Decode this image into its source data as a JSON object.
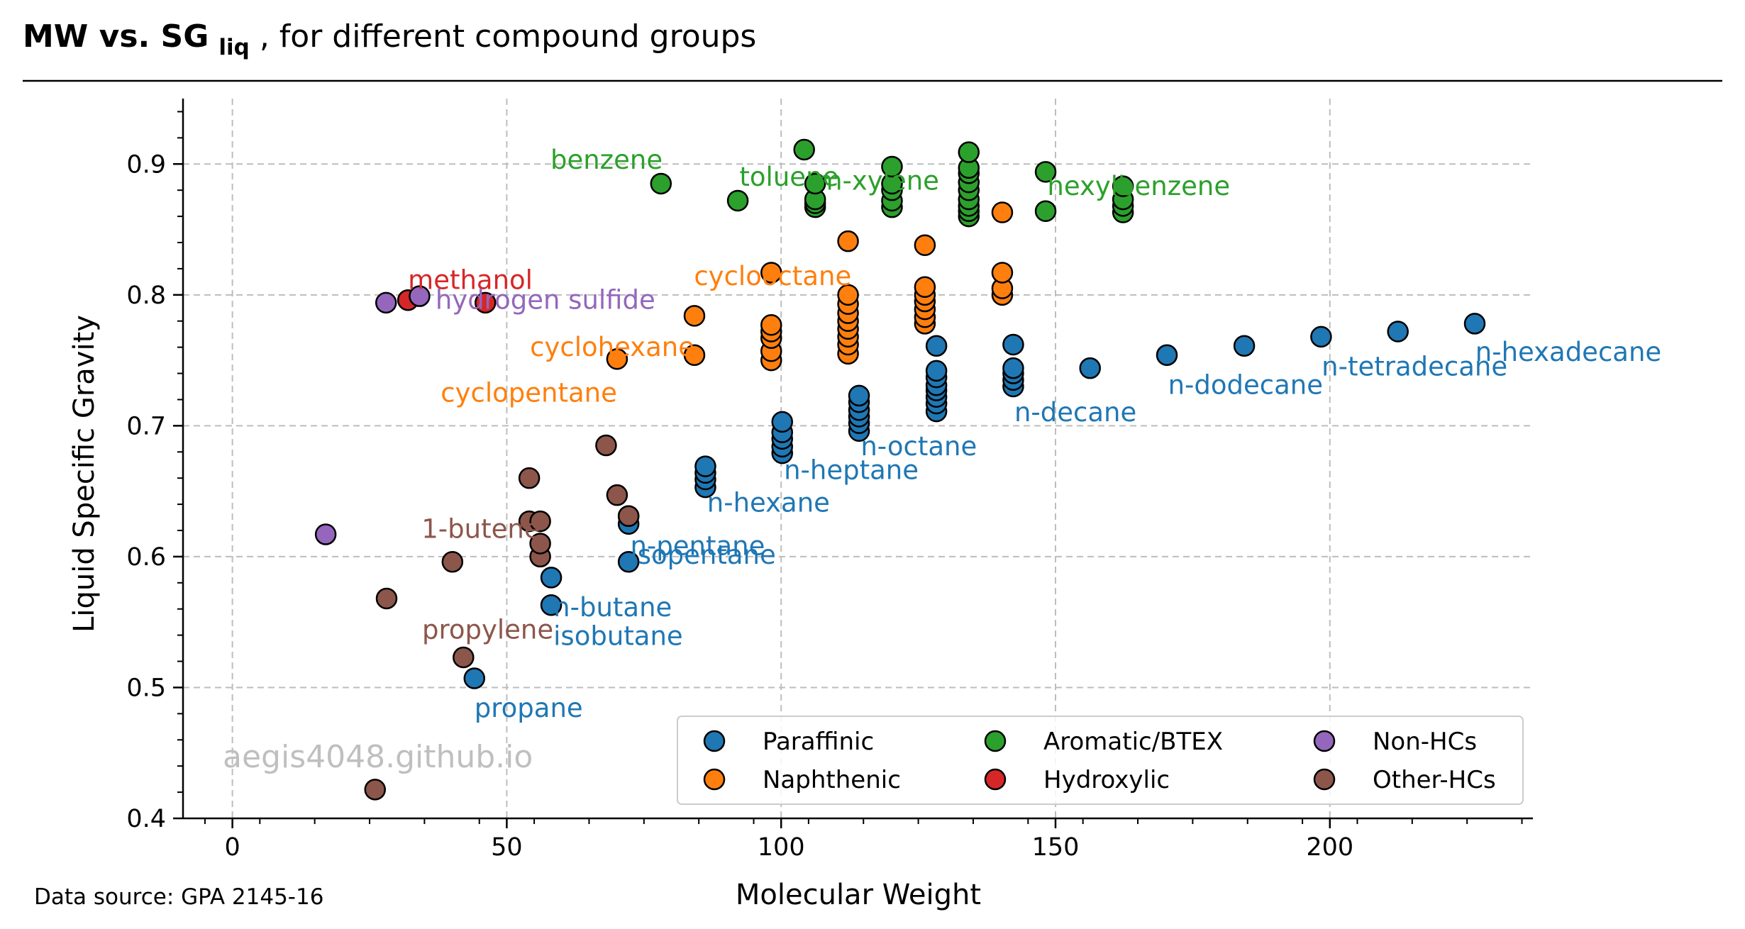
{
  "header": {
    "title_bold_main": "MW vs. ",
    "title_bold_sg": "SG",
    "title_sub": "liq",
    "title_rest": ", for different compound groups"
  },
  "footer": {
    "source": "Data source: GPA 2145-16",
    "watermark": "aegis4048.github.io"
  },
  "chart_data": {
    "type": "scatter",
    "xlabel": "Molecular Weight",
    "ylabel": "Liquid Specific Gravity",
    "xlim": [
      -9,
      237
    ],
    "ylim": [
      0.4,
      0.95
    ],
    "xticks": [
      0,
      50,
      100,
      150,
      200
    ],
    "yticks": [
      0.4,
      0.5,
      0.6,
      0.7,
      0.8,
      0.9
    ],
    "grid": true,
    "legend_position": "lower-right",
    "legend_columns": 3,
    "series": [
      {
        "name": "Paraffinic",
        "color": "#1f77b4",
        "points": [
          [
            44.1,
            0.507
          ],
          [
            58.1,
            0.563
          ],
          [
            58.1,
            0.584
          ],
          [
            72.2,
            0.596
          ],
          [
            72.2,
            0.625
          ],
          [
            72.2,
            0.631
          ],
          [
            86.2,
            0.653
          ],
          [
            86.2,
            0.659
          ],
          [
            86.2,
            0.664
          ],
          [
            86.2,
            0.669
          ],
          [
            100.2,
            0.679
          ],
          [
            100.2,
            0.684
          ],
          [
            100.2,
            0.69
          ],
          [
            100.2,
            0.695
          ],
          [
            100.2,
            0.703
          ],
          [
            114.2,
            0.696
          ],
          [
            114.2,
            0.702
          ],
          [
            114.2,
            0.707
          ],
          [
            114.2,
            0.712
          ],
          [
            114.2,
            0.718
          ],
          [
            114.2,
            0.723
          ],
          [
            128.3,
            0.711
          ],
          [
            128.3,
            0.717
          ],
          [
            128.3,
            0.722
          ],
          [
            128.3,
            0.727
          ],
          [
            128.3,
            0.731
          ],
          [
            128.3,
            0.737
          ],
          [
            128.3,
            0.742
          ],
          [
            128.3,
            0.761
          ],
          [
            142.3,
            0.73
          ],
          [
            142.3,
            0.735
          ],
          [
            142.3,
            0.74
          ],
          [
            142.3,
            0.744
          ],
          [
            142.3,
            0.762
          ],
          [
            156.3,
            0.744
          ],
          [
            170.3,
            0.754
          ],
          [
            184.4,
            0.761
          ],
          [
            198.4,
            0.768
          ],
          [
            212.4,
            0.772
          ],
          [
            226.4,
            0.778
          ]
        ]
      },
      {
        "name": "Naphthenic",
        "color": "#ff7f0e",
        "points": [
          [
            70.1,
            0.751
          ],
          [
            84.2,
            0.754
          ],
          [
            84.2,
            0.784
          ],
          [
            98.2,
            0.75
          ],
          [
            98.2,
            0.757
          ],
          [
            98.2,
            0.767
          ],
          [
            98.2,
            0.772
          ],
          [
            98.2,
            0.777
          ],
          [
            98.2,
            0.817
          ],
          [
            112.2,
            0.755
          ],
          [
            112.2,
            0.762
          ],
          [
            112.2,
            0.768
          ],
          [
            112.2,
            0.774
          ],
          [
            112.2,
            0.78
          ],
          [
            112.2,
            0.786
          ],
          [
            112.2,
            0.793
          ],
          [
            112.2,
            0.8
          ],
          [
            112.2,
            0.841
          ],
          [
            126.2,
            0.778
          ],
          [
            126.2,
            0.783
          ],
          [
            126.2,
            0.789
          ],
          [
            126.2,
            0.795
          ],
          [
            126.2,
            0.8
          ],
          [
            126.2,
            0.806
          ],
          [
            126.2,
            0.838
          ],
          [
            140.3,
            0.8
          ],
          [
            140.3,
            0.805
          ],
          [
            140.3,
            0.817
          ],
          [
            140.3,
            0.863
          ]
        ]
      },
      {
        "name": "Aromatic/BTEX",
        "color": "#2ca02c",
        "points": [
          [
            78.1,
            0.885
          ],
          [
            92.1,
            0.872
          ],
          [
            104.2,
            0.911
          ],
          [
            106.2,
            0.867
          ],
          [
            106.2,
            0.87
          ],
          [
            106.2,
            0.873
          ],
          [
            106.2,
            0.885
          ],
          [
            120.2,
            0.867
          ],
          [
            120.2,
            0.872
          ],
          [
            120.2,
            0.88
          ],
          [
            120.2,
            0.885
          ],
          [
            120.2,
            0.898
          ],
          [
            134.2,
            0.86
          ],
          [
            134.2,
            0.864
          ],
          [
            134.2,
            0.868
          ],
          [
            134.2,
            0.873
          ],
          [
            134.2,
            0.88
          ],
          [
            134.2,
            0.886
          ],
          [
            134.2,
            0.893
          ],
          [
            134.2,
            0.897
          ],
          [
            134.2,
            0.909
          ],
          [
            148.2,
            0.864
          ],
          [
            148.2,
            0.894
          ],
          [
            162.3,
            0.863
          ],
          [
            162.3,
            0.868
          ],
          [
            162.3,
            0.873
          ],
          [
            162.3,
            0.883
          ]
        ]
      },
      {
        "name": "Hydroxylic",
        "color": "#d62728",
        "points": [
          [
            32.0,
            0.796
          ],
          [
            46.1,
            0.794
          ]
        ]
      },
      {
        "name": "Non-HCs",
        "color": "#9467bd",
        "points": [
          [
            17.0,
            0.617
          ],
          [
            28.0,
            0.794
          ],
          [
            34.1,
            0.799
          ]
        ]
      },
      {
        "name": "Other-HCs",
        "color": "#8c564b",
        "points": [
          [
            26.0,
            0.422
          ],
          [
            28.1,
            0.568
          ],
          [
            40.1,
            0.596
          ],
          [
            42.1,
            0.523
          ],
          [
            54.1,
            0.627
          ],
          [
            54.1,
            0.66
          ],
          [
            56.1,
            0.6
          ],
          [
            56.1,
            0.61
          ],
          [
            56.1,
            0.627
          ],
          [
            68.1,
            0.685
          ],
          [
            70.1,
            0.647
          ],
          [
            72.2,
            0.631
          ]
        ]
      }
    ],
    "annotations": [
      {
        "text": "propane",
        "x": 44.1,
        "y": 0.485,
        "series": "Paraffinic"
      },
      {
        "text": "isobutane",
        "x": 58.5,
        "y": 0.54,
        "series": "Paraffinic"
      },
      {
        "text": "n-butane",
        "x": 58.5,
        "y": 0.562,
        "series": "Paraffinic"
      },
      {
        "text": "isopentane",
        "x": 72.5,
        "y": 0.602,
        "series": "Paraffinic"
      },
      {
        "text": "n-pentane",
        "x": 72.5,
        "y": 0.609,
        "series": "Paraffinic"
      },
      {
        "text": "n-hexane",
        "x": 86.5,
        "y": 0.642,
        "series": "Paraffinic"
      },
      {
        "text": "n-heptane",
        "x": 100.5,
        "y": 0.667,
        "series": "Paraffinic"
      },
      {
        "text": "n-octane",
        "x": 114.5,
        "y": 0.685,
        "series": "Paraffinic"
      },
      {
        "text": "n-decane",
        "x": 142.5,
        "y": 0.711,
        "series": "Paraffinic"
      },
      {
        "text": "n-dodecane",
        "x": 170.5,
        "y": 0.732,
        "series": "Paraffinic"
      },
      {
        "text": "n-tetradecane",
        "x": 198.5,
        "y": 0.746,
        "series": "Paraffinic"
      },
      {
        "text": "n-hexadecane",
        "x": 226.5,
        "y": 0.757,
        "series": "Paraffinic"
      },
      {
        "text": "cyclopentane",
        "x": 70.1,
        "y": 0.726,
        "anchor": "end",
        "series": "Naphthenic"
      },
      {
        "text": "cyclohexane",
        "x": 84.2,
        "y": 0.761,
        "anchor": "end",
        "series": "Naphthenic"
      },
      {
        "text": "cyclooctane",
        "x": 112.8,
        "y": 0.815,
        "anchor": "end",
        "series": "Naphthenic"
      },
      {
        "text": "benzene",
        "x": 78.4,
        "y": 0.904,
        "anchor": "end",
        "series": "Aromatic/BTEX"
      },
      {
        "text": "toluene",
        "x": 92.4,
        "y": 0.891,
        "series": "Aromatic/BTEX"
      },
      {
        "text": "m-xylene",
        "x": 106.5,
        "y": 0.888,
        "series": "Aromatic/BTEX"
      },
      {
        "text": "hexylbenzene",
        "x": 148.5,
        "y": 0.884,
        "series": "Aromatic/BTEX"
      },
      {
        "text": "methanol",
        "x": 32.0,
        "y": 0.812,
        "series": "Hydroxylic"
      },
      {
        "text": "hydrogen sulfide",
        "x": 37.0,
        "y": 0.797,
        "series": "Non-HCs"
      },
      {
        "text": "1-butene",
        "x": 56.1,
        "y": 0.622,
        "anchor": "end",
        "series": "Other-HCs"
      },
      {
        "text": "propylene",
        "x": 58.5,
        "y": 0.545,
        "anchor": "end",
        "series": "Other-HCs"
      }
    ]
  }
}
